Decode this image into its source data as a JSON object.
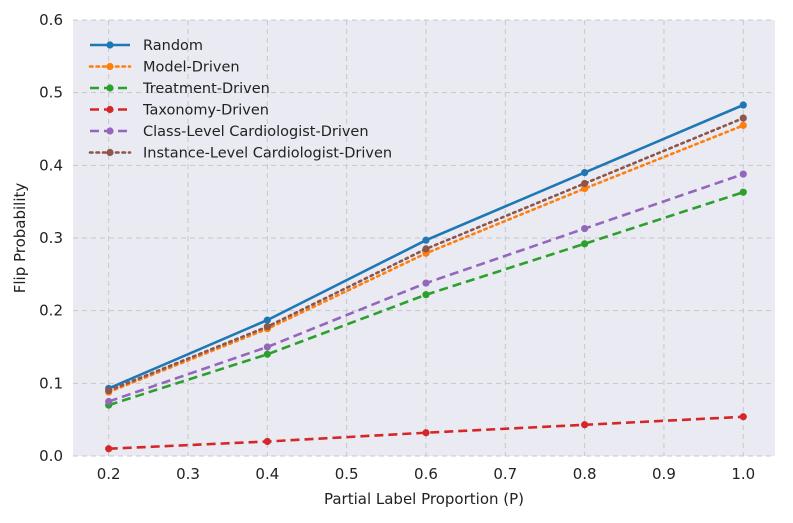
{
  "chart_data": {
    "type": "line",
    "title": "",
    "xlabel": "Partial Label Proportion (P)",
    "ylabel": "Flip Probability",
    "x": [
      0.2,
      0.4,
      0.6,
      0.8,
      1.0
    ],
    "xlim": [
      0.155,
      1.04
    ],
    "ylim": [
      0.0,
      0.6
    ],
    "xticks": [
      0.2,
      0.3,
      0.4,
      0.5,
      0.6,
      0.7,
      0.8,
      0.9,
      1.0
    ],
    "xtick_labels": [
      "0.2",
      "0.3",
      "0.4",
      "0.5",
      "0.6",
      "0.7",
      "0.8",
      "0.9",
      "1.0"
    ],
    "yticks": [
      0.0,
      0.1,
      0.2,
      0.3,
      0.4,
      0.5,
      0.6
    ],
    "ytick_labels": [
      "0.0",
      "0.1",
      "0.2",
      "0.3",
      "0.4",
      "0.5",
      "0.6"
    ],
    "grid": true,
    "legend_position": "top-left",
    "series": [
      {
        "name": "Random",
        "color": "#1f77b4",
        "style": "solid",
        "values": [
          0.093,
          0.187,
          0.297,
          0.39,
          0.483
        ]
      },
      {
        "name": "Model-Driven",
        "color": "#ff7f0e",
        "style": "dotted",
        "values": [
          0.088,
          0.175,
          0.279,
          0.368,
          0.455
        ]
      },
      {
        "name": "Treatment-Driven",
        "color": "#2ca02c",
        "style": "dashed",
        "values": [
          0.07,
          0.14,
          0.222,
          0.292,
          0.363
        ]
      },
      {
        "name": "Taxonomy-Driven",
        "color": "#d62728",
        "style": "dashed",
        "values": [
          0.01,
          0.02,
          0.032,
          0.043,
          0.054
        ]
      },
      {
        "name": "Class-Level Cardiologist-Driven",
        "color": "#9467bd",
        "style": "dashed",
        "values": [
          0.075,
          0.15,
          0.238,
          0.313,
          0.388
        ]
      },
      {
        "name": "Instance-Level Cardiologist-Driven",
        "color": "#8c564b",
        "style": "dotted",
        "values": [
          0.09,
          0.178,
          0.285,
          0.375,
          0.465
        ]
      }
    ]
  }
}
